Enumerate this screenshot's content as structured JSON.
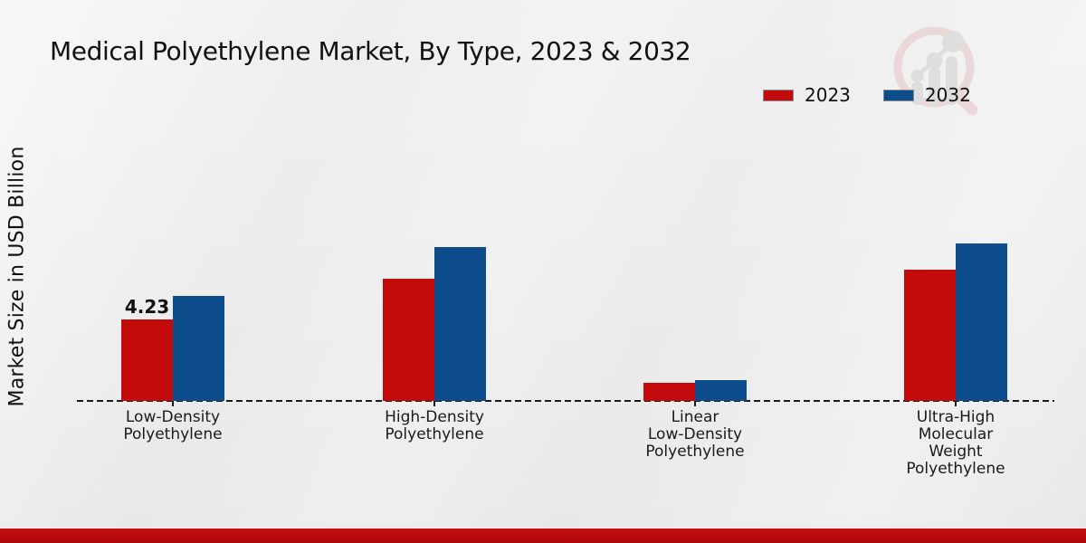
{
  "title": "Medical Polyethylene Market, By Type, 2023 & 2032",
  "y_axis_label": "Market Size in USD Billion",
  "colors": {
    "series_2023": "#c40b0b",
    "series_2032": "#0e4d8b",
    "footer_bar": "#b60d0d",
    "background": "#ededed",
    "text": "#111111"
  },
  "legend": {
    "position": "top-right",
    "items": [
      {
        "label": "2023",
        "color": "#c40b0b"
      },
      {
        "label": "2032",
        "color": "#0e4d8b"
      }
    ]
  },
  "watermark_icon": "magnifier-growth-chart-logo",
  "chart_data": {
    "type": "bar",
    "title": "Medical Polyethylene Market, By Type, 2023 & 2032",
    "xlabel": "",
    "ylabel": "Market Size in USD Billion",
    "grid": false,
    "baseline_style": "dashed",
    "legend_position": "top-right",
    "categories": [
      "Low-Density Polyethylene",
      "High-Density Polyethylene",
      "Linear Low-Density Polyethylene",
      "Ultra-High Molecular Weight Polyethylene"
    ],
    "category_label_lines": [
      [
        "Low-Density",
        "Polyethylene"
      ],
      [
        "High-Density",
        "Polyethylene"
      ],
      [
        "Linear",
        "Low-Density",
        "Polyethylene"
      ],
      [
        "Ultra-High",
        "Molecular",
        "Weight",
        "Polyethylene"
      ]
    ],
    "series": [
      {
        "name": "2023",
        "color": "#c40b0b",
        "values": [
          4.23,
          6.32,
          0.94,
          6.79
        ]
      },
      {
        "name": "2032",
        "color": "#0e4d8b",
        "values": [
          5.45,
          7.94,
          1.06,
          8.13
        ]
      }
    ],
    "data_labels": [
      {
        "series": "2023",
        "category_index": 0,
        "text": "4.23"
      }
    ],
    "ylim": [
      0,
      9
    ]
  }
}
